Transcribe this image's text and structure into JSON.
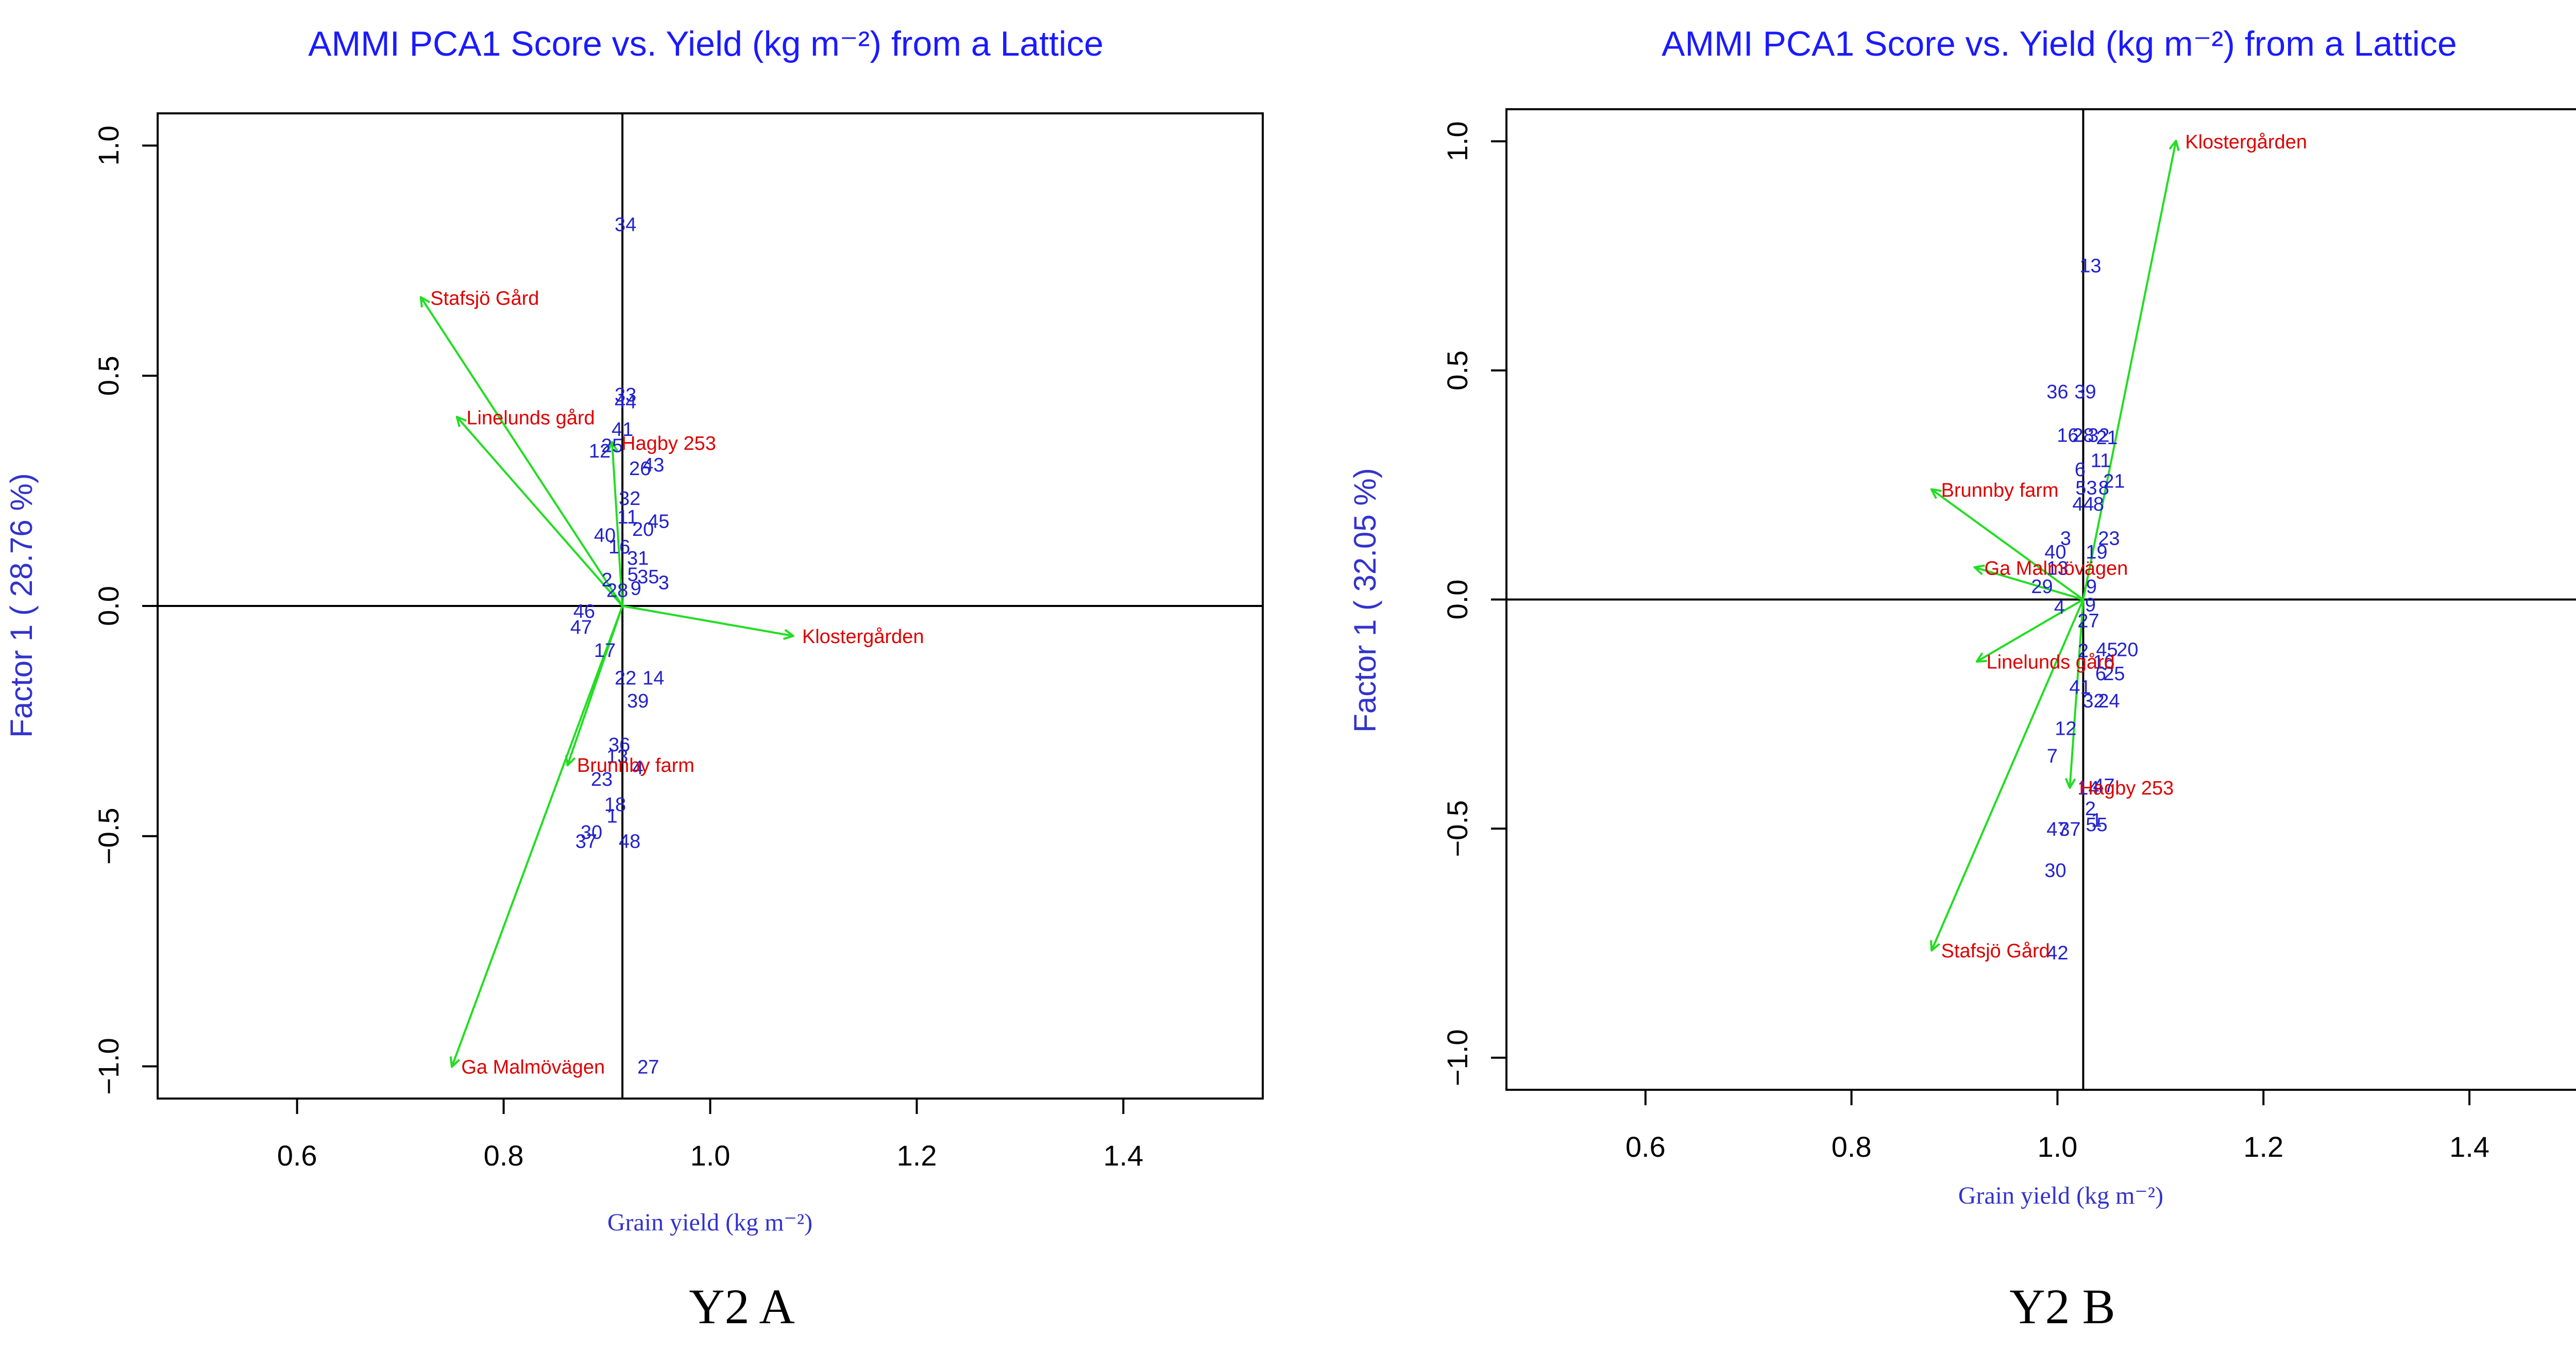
{
  "colors": {
    "title": "#1a1aff",
    "axis_label": "#3333cc",
    "genotype": "#2222cc",
    "environment_label": "#dd0000",
    "arrow": "#22dd22",
    "axes": "#000000",
    "caption": "#000000"
  },
  "chart_data": [
    {
      "type": "scatter",
      "title": "AMMI PCA1 Score vs. Yield (kg m⁻²) from a Lattice",
      "xlabel": "Grain yield (kg m⁻²)",
      "ylabel": "Factor 1 ( 28.76 %)",
      "caption": "Y2 A",
      "xlim": [
        0.465,
        1.535
      ],
      "ylim": [
        -1.07,
        1.07
      ],
      "xticks": [
        0.6,
        0.8,
        1.0,
        1.2,
        1.4
      ],
      "xtick_labels": [
        "0.6",
        "0.8",
        "1.0",
        "1.2",
        "1.4"
      ],
      "yticks": [
        1.0,
        0.5,
        0.0,
        -0.5,
        -1.0
      ],
      "ytick_labels": [
        "1.0",
        "0.5",
        "0.0",
        "−0.5",
        "−1.0"
      ],
      "reference_lines": {
        "x": 0.915,
        "y": 0.0
      },
      "genotypes": [
        {
          "label": "34",
          "x": 0.918,
          "y": 0.83
        },
        {
          "label": "33",
          "x": 0.918,
          "y": 0.46
        },
        {
          "label": "44",
          "x": 0.918,
          "y": 0.445
        },
        {
          "label": "41",
          "x": 0.915,
          "y": 0.385
        },
        {
          "label": "25",
          "x": 0.905,
          "y": 0.35
        },
        {
          "label": "12",
          "x": 0.893,
          "y": 0.338
        },
        {
          "label": "26",
          "x": 0.932,
          "y": 0.3
        },
        {
          "label": "43",
          "x": 0.945,
          "y": 0.308
        },
        {
          "label": "32",
          "x": 0.922,
          "y": 0.235
        },
        {
          "label": "11",
          "x": 0.92,
          "y": 0.195
        },
        {
          "label": "45",
          "x": 0.95,
          "y": 0.185
        },
        {
          "label": "20",
          "x": 0.935,
          "y": 0.168
        },
        {
          "label": "40",
          "x": 0.898,
          "y": 0.155
        },
        {
          "label": "16",
          "x": 0.912,
          "y": 0.13
        },
        {
          "label": "31",
          "x": 0.93,
          "y": 0.105
        },
        {
          "label": "5",
          "x": 0.925,
          "y": 0.07
        },
        {
          "label": "35",
          "x": 0.94,
          "y": 0.065
        },
        {
          "label": "3",
          "x": 0.955,
          "y": 0.052
        },
        {
          "label": "9",
          "x": 0.928,
          "y": 0.04
        },
        {
          "label": "2",
          "x": 0.9,
          "y": 0.058
        },
        {
          "label": "28",
          "x": 0.91,
          "y": 0.035
        },
        {
          "label": "46",
          "x": 0.878,
          "y": -0.01
        },
        {
          "label": "47",
          "x": 0.875,
          "y": -0.045
        },
        {
          "label": "17",
          "x": 0.898,
          "y": -0.095
        },
        {
          "label": "22",
          "x": 0.918,
          "y": -0.155
        },
        {
          "label": "14",
          "x": 0.945,
          "y": -0.155
        },
        {
          "label": "39",
          "x": 0.93,
          "y": -0.205
        },
        {
          "label": "36",
          "x": 0.912,
          "y": -0.3
        },
        {
          "label": "13",
          "x": 0.91,
          "y": -0.325
        },
        {
          "label": "4",
          "x": 0.93,
          "y": -0.35
        },
        {
          "label": "23",
          "x": 0.895,
          "y": -0.375
        },
        {
          "label": "18",
          "x": 0.908,
          "y": -0.43
        },
        {
          "label": "1",
          "x": 0.905,
          "y": -0.455
        },
        {
          "label": "30",
          "x": 0.885,
          "y": -0.49
        },
        {
          "label": "37",
          "x": 0.88,
          "y": -0.51
        },
        {
          "label": "48",
          "x": 0.922,
          "y": -0.51
        },
        {
          "label": "27",
          "x": 0.94,
          "y": -1.0
        }
      ],
      "environments": [
        {
          "label": "Stafsjö Gård",
          "x": 0.72,
          "y": 0.67,
          "align": "start"
        },
        {
          "label": "Linelunds gård",
          "x": 0.755,
          "y": 0.41,
          "align": "start"
        },
        {
          "label": "Hagby 253",
          "x": 0.905,
          "y": 0.355,
          "align": "start"
        },
        {
          "label": "Klostergården",
          "x": 1.08,
          "y": -0.065,
          "align": "start"
        },
        {
          "label": "Brunnby farm",
          "x": 0.862,
          "y": -0.345,
          "align": "start"
        },
        {
          "label": "Ga Malmövägen",
          "x": 0.75,
          "y": -1.0,
          "align": "start"
        }
      ]
    },
    {
      "type": "scatter",
      "title": "AMMI PCA1 Score vs. Yield (kg m⁻²) from a Lattice",
      "xlabel": "Grain yield (kg m⁻²)",
      "ylabel": "Factor 1 ( 32.05 %)",
      "caption": "Y2 B",
      "xlim": [
        0.465,
        1.535
      ],
      "ylim": [
        -1.07,
        1.07
      ],
      "xticks": [
        0.6,
        0.8,
        1.0,
        1.2,
        1.4
      ],
      "xtick_labels": [
        "0.6",
        "0.8",
        "1.0",
        "1.2",
        "1.4"
      ],
      "yticks": [
        1.0,
        0.5,
        0.0,
        -0.5,
        -1.0
      ],
      "ytick_labels": [
        "1.0",
        "0.5",
        "0.0",
        "−0.5",
        "−1.0"
      ],
      "reference_lines": {
        "x": 1.025,
        "y": 0.0
      },
      "genotypes": [
        {
          "label": "13",
          "x": 1.032,
          "y": 0.73
        },
        {
          "label": "36",
          "x": 1.0,
          "y": 0.455
        },
        {
          "label": "39",
          "x": 1.027,
          "y": 0.455
        },
        {
          "label": "16",
          "x": 1.01,
          "y": 0.36
        },
        {
          "label": "28",
          "x": 1.025,
          "y": 0.36
        },
        {
          "label": "32",
          "x": 1.04,
          "y": 0.36
        },
        {
          "label": "21",
          "x": 1.048,
          "y": 0.355
        },
        {
          "label": "11",
          "x": 1.042,
          "y": 0.305
        },
        {
          "label": "6",
          "x": 1.022,
          "y": 0.285
        },
        {
          "label": "21",
          "x": 1.055,
          "y": 0.26
        },
        {
          "label": "53",
          "x": 1.028,
          "y": 0.245
        },
        {
          "label": "8",
          "x": 1.045,
          "y": 0.245
        },
        {
          "label": "44",
          "x": 1.025,
          "y": 0.21
        },
        {
          "label": "8",
          "x": 1.04,
          "y": 0.21
        },
        {
          "label": "3",
          "x": 1.008,
          "y": 0.135
        },
        {
          "label": "23",
          "x": 1.05,
          "y": 0.135
        },
        {
          "label": "40",
          "x": 0.998,
          "y": 0.105
        },
        {
          "label": "19",
          "x": 1.038,
          "y": 0.105
        },
        {
          "label": "13",
          "x": 1.0,
          "y": 0.07
        },
        {
          "label": "29",
          "x": 0.985,
          "y": 0.03
        },
        {
          "label": "9",
          "x": 1.033,
          "y": 0.03
        },
        {
          "label": "4",
          "x": 1.002,
          "y": -0.015
        },
        {
          "label": "9",
          "x": 1.032,
          "y": -0.01
        },
        {
          "label": "27",
          "x": 1.03,
          "y": -0.045
        },
        {
          "label": "2",
          "x": 1.025,
          "y": -0.11
        },
        {
          "label": "45",
          "x": 1.048,
          "y": -0.108
        },
        {
          "label": "20",
          "x": 1.068,
          "y": -0.108
        },
        {
          "label": "16",
          "x": 1.045,
          "y": -0.135
        },
        {
          "label": "6",
          "x": 1.042,
          "y": -0.16
        },
        {
          "label": "25",
          "x": 1.055,
          "y": -0.16
        },
        {
          "label": "41",
          "x": 1.022,
          "y": -0.19
        },
        {
          "label": "32",
          "x": 1.035,
          "y": -0.22
        },
        {
          "label": "24",
          "x": 1.05,
          "y": -0.22
        },
        {
          "label": "12",
          "x": 1.008,
          "y": -0.28
        },
        {
          "label": "7",
          "x": 0.995,
          "y": -0.34
        },
        {
          "label": "14",
          "x": 1.03,
          "y": -0.41
        },
        {
          "label": "47",
          "x": 1.045,
          "y": -0.405
        },
        {
          "label": "2",
          "x": 1.032,
          "y": -0.455
        },
        {
          "label": "1",
          "x": 1.038,
          "y": -0.48
        },
        {
          "label": "47",
          "x": 1.0,
          "y": -0.5
        },
        {
          "label": "37",
          "x": 1.012,
          "y": -0.5
        },
        {
          "label": "55",
          "x": 1.038,
          "y": -0.49
        },
        {
          "label": "30",
          "x": 0.998,
          "y": -0.59
        },
        {
          "label": "42",
          "x": 1.0,
          "y": -0.77
        }
      ],
      "environments": [
        {
          "label": "Klostergården",
          "x": 1.115,
          "y": 1.0,
          "align": "start"
        },
        {
          "label": "Brunnby farm",
          "x": 0.878,
          "y": 0.24,
          "align": "start"
        },
        {
          "label": "Ga Malmövägen",
          "x": 0.92,
          "y": 0.07,
          "align": "start"
        },
        {
          "label": "Linelunds gård",
          "x": 0.922,
          "y": -0.135,
          "align": "start"
        },
        {
          "label": "Hagby 253",
          "x": 1.012,
          "y": -0.41,
          "align": "start"
        },
        {
          "label": "Stafsjö Gård",
          "x": 0.878,
          "y": -0.765,
          "align": "start"
        }
      ]
    }
  ]
}
